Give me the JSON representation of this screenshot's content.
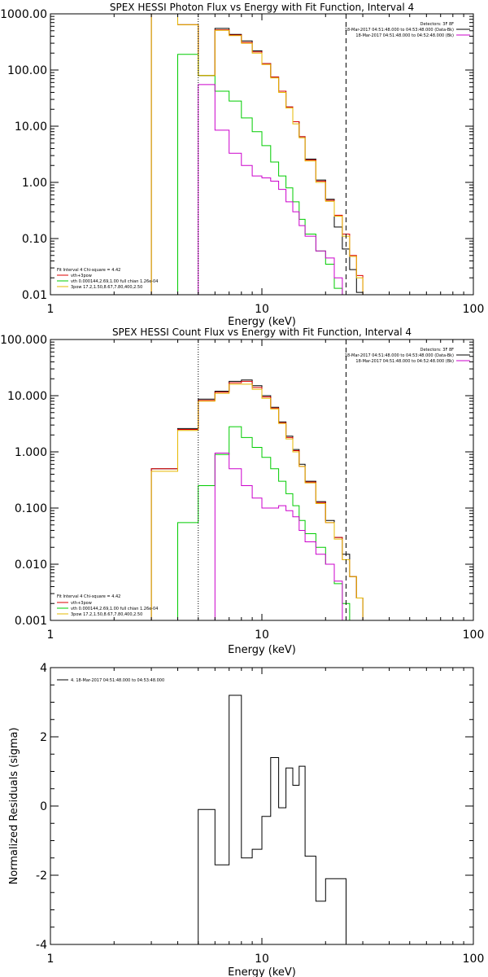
{
  "chart_data": [
    {
      "type": "line",
      "title": "SPEX HESSI Photon Flux vs Energy with Fit Function, Interval 4",
      "xlabel": "Energy (keV)",
      "ylabel": "",
      "x_scale": "log",
      "y_scale": "log",
      "xlim": [
        1,
        100
      ],
      "ylim": [
        0.01,
        1000
      ],
      "x_ticks": [
        "1",
        "10",
        "100"
      ],
      "y_ticks": [
        "0.01",
        "0.10",
        "1.00",
        "10.00",
        "100.00",
        "1000.00"
      ],
      "y_tick_values": [
        0.01,
        0.1,
        1,
        10,
        100,
        1000
      ],
      "legend_top_right": {
        "header": "Detectors: 3F 8F",
        "entries": [
          {
            "label": "18-Mar-2017 04:51:48.000 to 04:53:48.000 (Data-Bk)",
            "color": "#000000"
          },
          {
            "label": "18-Mar-2017 04:51:48.000 to 04:52:48.000 (Bk)",
            "color": "#cc00cc"
          }
        ]
      },
      "legend_bottom_left": {
        "header": "Fit Interval 4   Chi-square = 4.42",
        "entries": [
          {
            "label": "vth+3pow",
            "color": "#dd0000"
          },
          {
            "label": "vth 0.000144,2.69,1.00  full chian 1.26e-04",
            "color": "#00cc00"
          },
          {
            "label": "3pow 17.2,1.50,8.67,7.80,400,2.50",
            "color": "#e6b800"
          }
        ]
      },
      "vlines": [
        {
          "x": 5,
          "style": "dotted"
        },
        {
          "x": 25,
          "style": "dashed"
        }
      ],
      "bin_edges": [
        3,
        4,
        5,
        6,
        7,
        8,
        9,
        10,
        11,
        12,
        13,
        14,
        15,
        16,
        18,
        20,
        22,
        24,
        26,
        28,
        30,
        32
      ],
      "series": [
        {
          "color": "#000000",
          "values": [
            1000,
            640,
            80,
            550,
            430,
            330,
            220,
            130,
            75,
            42,
            22,
            12,
            6.5,
            2.6,
            1.1,
            0.5,
            0.16,
            0.065,
            0.028,
            0.011,
            0.002
          ]
        },
        {
          "color": "#dd0000",
          "values": [
            1000,
            640,
            80,
            520,
            420,
            310,
            210,
            130,
            75,
            42,
            22,
            12,
            6.5,
            2.5,
            1.05,
            0.48,
            0.26,
            0.12,
            0.05,
            0.022,
            0.009
          ]
        },
        {
          "color": "#00cc00",
          "values": [
            0.008,
            190,
            80,
            42,
            28,
            14,
            8,
            4.5,
            2.3,
            1.3,
            0.8,
            0.45,
            0.22,
            0.12,
            0.06,
            0.035,
            0.013,
            0.008,
            0.008,
            0.008,
            0.008
          ]
        },
        {
          "color": "#e6b800",
          "values": [
            1000,
            640,
            80,
            510,
            410,
            300,
            200,
            125,
            72,
            40,
            21,
            11,
            6.2,
            2.4,
            1.0,
            0.46,
            0.25,
            0.11,
            0.048,
            0.02,
            0.009
          ]
        },
        {
          "color": "#cc00cc",
          "values": [
            0.008,
            0.008,
            55,
            8.5,
            3.3,
            2.0,
            1.3,
            1.2,
            1.05,
            0.75,
            0.45,
            0.3,
            0.17,
            0.11,
            0.06,
            0.045,
            0.02,
            0.008,
            0.008,
            0.008,
            0.008
          ]
        }
      ]
    },
    {
      "type": "line",
      "title": "SPEX HESSI Count Flux vs Energy with Fit Function, Interval 4",
      "xlabel": "Energy (keV)",
      "ylabel": "",
      "x_scale": "log",
      "y_scale": "log",
      "xlim": [
        1,
        100
      ],
      "ylim": [
        0.001,
        100
      ],
      "x_ticks": [
        "1",
        "10",
        "100"
      ],
      "y_ticks": [
        "0.001",
        "0.010",
        "0.100",
        "1.000",
        "10.000",
        "100.000"
      ],
      "y_tick_values": [
        0.001,
        0.01,
        0.1,
        1,
        10,
        100
      ],
      "legend_top_right": {
        "header": "Detectors: 3F 8F",
        "entries": [
          {
            "label": "18-Mar-2017 04:51:48.000 to 04:53:48.000 (Data-Bk)",
            "color": "#000000"
          },
          {
            "label": "18-Mar-2017 04:51:48.000 to 04:52:48.000 (Bk)",
            "color": "#cc00cc"
          }
        ]
      },
      "legend_bottom_left": {
        "header": "Fit Interval 4   Chi-square = 4.42",
        "entries": [
          {
            "label": "vth+3pow",
            "color": "#dd0000"
          },
          {
            "label": "vth 0.000144,2.69,1.00  full chian 1.26e-04",
            "color": "#00cc00"
          },
          {
            "label": "3pow 17.2,1.50,8.67,7.80,400,2.50",
            "color": "#e6b800"
          }
        ]
      },
      "vlines": [
        {
          "x": 5,
          "style": "dotted"
        },
        {
          "x": 25,
          "style": "dashed"
        }
      ],
      "bin_edges": [
        3,
        4,
        5,
        6,
        7,
        8,
        9,
        10,
        11,
        12,
        13,
        14,
        15,
        16,
        18,
        20,
        22,
        24,
        26,
        28,
        30,
        32,
        34
      ],
      "series": [
        {
          "color": "#000000",
          "values": [
            0.5,
            2.6,
            8.7,
            12,
            18,
            19,
            15,
            10,
            6.2,
            3.4,
            1.9,
            1.1,
            0.6,
            0.3,
            0.13,
            0.06,
            0.03,
            0.015,
            0.006,
            0.0025,
            0.0009,
            0.0009
          ]
        },
        {
          "color": "#dd0000",
          "values": [
            0.5,
            2.5,
            8.2,
            11.5,
            17,
            18,
            14,
            9.5,
            6.0,
            3.3,
            1.8,
            1.05,
            0.55,
            0.29,
            0.125,
            0.055,
            0.03,
            0.012,
            0.006,
            0.0025,
            0.001,
            0.0009
          ]
        },
        {
          "color": "#00cc00",
          "values": [
            0.0009,
            0.055,
            0.25,
            0.9,
            2.8,
            1.8,
            1.2,
            0.8,
            0.5,
            0.3,
            0.18,
            0.11,
            0.06,
            0.035,
            0.02,
            0.01,
            0.0045,
            0.002,
            0.0009,
            0.0009,
            0.0009,
            0.0009
          ]
        },
        {
          "color": "#e6b800",
          "values": [
            0.45,
            2.4,
            8.0,
            11,
            16,
            16,
            13,
            9.0,
            5.8,
            3.2,
            1.7,
            1.0,
            0.55,
            0.28,
            0.12,
            0.055,
            0.028,
            0.012,
            0.006,
            0.0025,
            0.001,
            0.0009
          ]
        },
        {
          "color": "#cc00cc",
          "values": [
            0.0009,
            0.0009,
            0.0009,
            0.95,
            0.5,
            0.25,
            0.15,
            0.1,
            0.1,
            0.11,
            0.09,
            0.07,
            0.04,
            0.025,
            0.015,
            0.01,
            0.005,
            0.0009,
            0.0009,
            0.0009,
            0.0009,
            0.0009
          ]
        }
      ]
    },
    {
      "type": "line",
      "title": "",
      "xlabel": "Energy (keV)",
      "ylabel": "Normalized Residuals (sigma)",
      "x_scale": "log",
      "y_scale": "linear",
      "xlim": [
        1,
        100
      ],
      "ylim": [
        -4,
        4
      ],
      "x_ticks": [
        "1",
        "10",
        "100"
      ],
      "y_ticks": [
        "-4",
        "-2",
        "0",
        "2",
        "4"
      ],
      "y_tick_values": [
        -4,
        -2,
        0,
        2,
        4
      ],
      "legend": "4. 18-Mar-2017 04:51:48.000 to 04:53:48.000",
      "bin_edges": [
        5,
        6,
        7,
        8,
        9,
        10,
        11,
        12,
        13,
        14,
        15,
        16,
        18,
        20,
        22,
        24,
        25
      ],
      "series": [
        {
          "color": "#000000",
          "values": [
            -0.1,
            -1.7,
            3.2,
            -1.5,
            -1.25,
            -0.3,
            1.4,
            -0.05,
            1.1,
            0.6,
            1.15,
            -1.45,
            -2.75,
            -2.1,
            -2.1,
            -2.1
          ]
        }
      ]
    }
  ]
}
